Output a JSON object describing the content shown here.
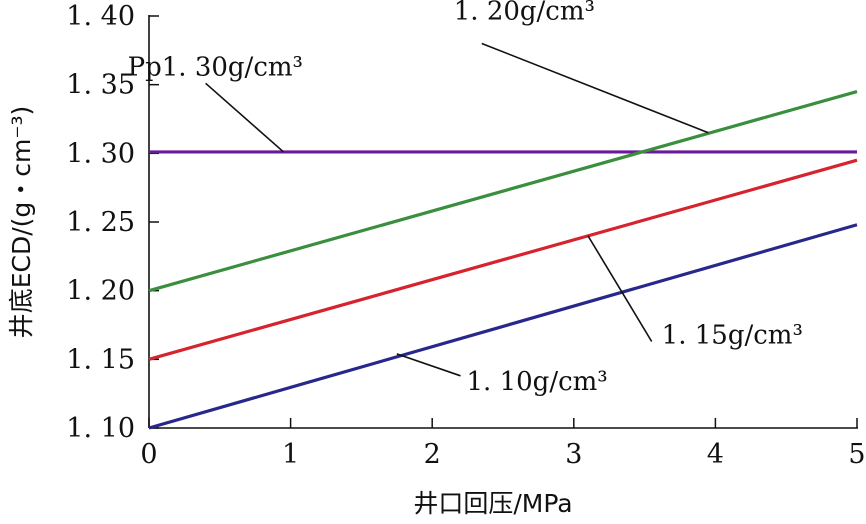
{
  "chart_data": {
    "type": "line",
    "xlabel": "井口回压/MPa",
    "ylabel": "井底ECD/(g・cm⁻³)",
    "xlim": [
      0,
      5
    ],
    "ylim": [
      1.1,
      1.4
    ],
    "x_ticks": [
      "0",
      "1",
      "2",
      "3",
      "4",
      "5"
    ],
    "y_ticks": [
      "1. 10",
      "1. 15",
      "1. 20",
      "1. 25",
      "1. 30",
      "1. 35",
      "1. 40"
    ],
    "x_tick_values": [
      0,
      1,
      2,
      3,
      4,
      5
    ],
    "y_tick_values": [
      1.1,
      1.15,
      1.2,
      1.25,
      1.3,
      1.35,
      1.4
    ],
    "grid": false,
    "series": [
      {
        "name": "Pp1. 30g/cm³",
        "color": "#6a1b9a",
        "x": [
          0,
          5
        ],
        "y": [
          1.301,
          1.301
        ]
      },
      {
        "name": "1. 20g/cm³",
        "color": "#3a8f3e",
        "x": [
          0,
          5
        ],
        "y": [
          1.2,
          1.345
        ]
      },
      {
        "name": "1. 15g/cm³",
        "color": "#d6232e",
        "x": [
          0,
          5
        ],
        "y": [
          1.15,
          1.295
        ]
      },
      {
        "name": "1. 10g/cm³",
        "color": "#28288c",
        "x": [
          0,
          5
        ],
        "y": [
          1.1,
          1.248
        ]
      }
    ],
    "annotations": [
      {
        "series": 0,
        "text": "Pp1. 30g/cm³",
        "point": [
          0.95,
          1.301
        ],
        "label": [
          0.4,
          1.351
        ]
      },
      {
        "series": 1,
        "text": "1. 20g/cm³",
        "point": [
          3.95,
          1.315
        ],
        "label": [
          2.35,
          1.38
        ]
      },
      {
        "series": 2,
        "text": "1. 15g/cm³",
        "point": [
          3.1,
          1.24
        ],
        "label": [
          3.55,
          1.163
        ]
      },
      {
        "series": 3,
        "text": "1. 10g/cm³",
        "point": [
          1.75,
          1.154
        ],
        "label": [
          2.2,
          1.138
        ]
      }
    ]
  }
}
